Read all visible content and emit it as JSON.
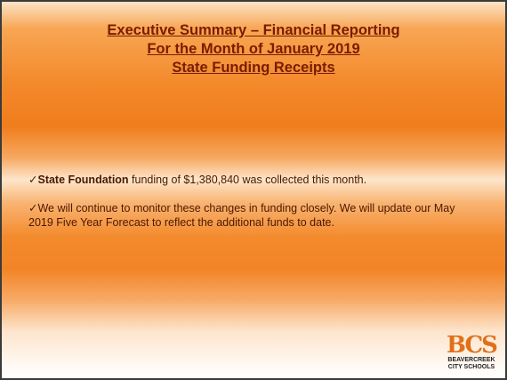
{
  "slide": {
    "title_lines": [
      "Executive Summary – Financial Reporting",
      "For the Month of January 2019",
      "State Funding Receipts"
    ],
    "bullets": [
      {
        "marker": "✓",
        "bold": "State Foundation",
        "text": "funding of $1,380,840 was collected this month."
      },
      {
        "marker": "✓",
        "text": "We will continue to monitor these changes in funding closely.  We will update our May 2019 Five Year Forecast to reflect the additional funds to date."
      }
    ],
    "logo": {
      "mark": "BCS",
      "line1": "BEAVERCREEK",
      "line2": "CITY SCHOOLS"
    }
  }
}
